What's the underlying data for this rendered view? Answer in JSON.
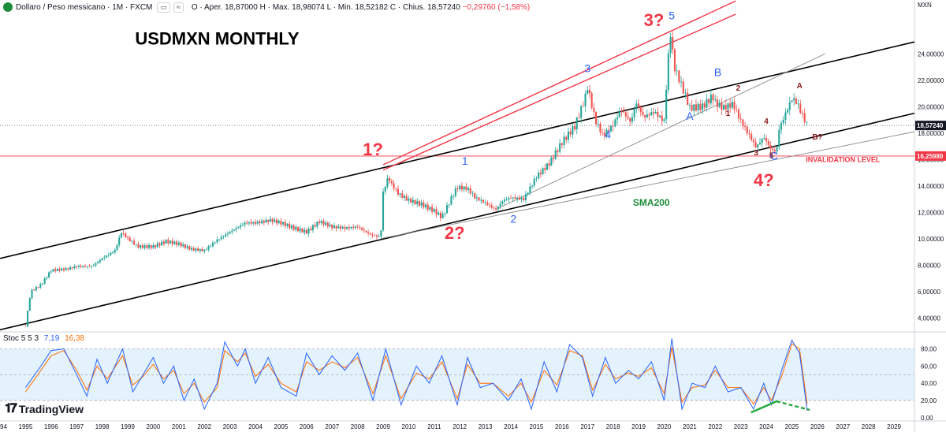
{
  "header": {
    "symbol": "Dollaro / Peso messicano · 1M · FXCM",
    "ohlc": "O · Aper. 18,87000  H · Max. 18,98074  L · Min. 18,52182  C · Chius. 18,57240",
    "change": "−0,29760 (−1,58%)",
    "compare_icon": "compare-icon",
    "indicator_icon": "approx-icon"
  },
  "unit_label": "MXN",
  "stoch_legend": {
    "name": "Stoc 5 5 3",
    "k": "7,19",
    "d": "16,38"
  },
  "brand": {
    "name": "TradingView",
    "icon": "tradingview-logo-icon"
  },
  "colors": {
    "up": "#26a69a",
    "down": "#ef5350",
    "red_annot": "#f23645",
    "blue_annot": "#2962ff",
    "dark_red_annot": "#8b1a1a",
    "green_annot": "#1e8c3a",
    "stoch_k": "#2962ff",
    "stoch_d": "#ff6d00",
    "stoch_band": "#e3f2fd",
    "channel": "#000000"
  },
  "chart_data": [
    {
      "type": "candlestick",
      "title": "USDMXN MONTHLY",
      "y_axis": {
        "min": 3,
        "max": 27,
        "ticks": [
          "4,00000",
          "6,00000",
          "8,00000",
          "10,00000",
          "12,00000",
          "14,00000",
          "16,00000",
          "18,00000",
          "20,00000",
          "22,00000",
          "24,00000"
        ]
      },
      "x_axis": {
        "start": 1994.0,
        "end": 2029.8,
        "ticks": [
          "1994",
          "1995",
          "1996",
          "1997",
          "1998",
          "1999",
          "2000",
          "2001",
          "2002",
          "2003",
          "2004",
          "2005",
          "2006",
          "2007",
          "2008",
          "2009",
          "2010",
          "2011",
          "2012",
          "2013",
          "2014",
          "2015",
          "2016",
          "2017",
          "2018",
          "2019",
          "2020",
          "2021",
          "2022",
          "2023",
          "2024",
          "2025",
          "2026",
          "2027",
          "2028",
          "2029"
        ]
      },
      "price_path": [
        [
          1995.0,
          3.4
        ],
        [
          1995.2,
          6.0
        ],
        [
          1995.6,
          6.5
        ],
        [
          1996.0,
          7.6
        ],
        [
          1996.6,
          7.7
        ],
        [
          1997.0,
          7.9
        ],
        [
          1997.6,
          7.9
        ],
        [
          1998.0,
          8.5
        ],
        [
          1998.5,
          9.1
        ],
        [
          1998.75,
          10.5
        ],
        [
          1999.0,
          10.0
        ],
        [
          1999.4,
          9.4
        ],
        [
          2000.0,
          9.4
        ],
        [
          2000.5,
          9.8
        ],
        [
          2001.0,
          9.6
        ],
        [
          2001.5,
          9.2
        ],
        [
          2002.0,
          9.1
        ],
        [
          2002.5,
          9.9
        ],
        [
          2003.0,
          10.5
        ],
        [
          2003.6,
          11.2
        ],
        [
          2004.0,
          11.2
        ],
        [
          2004.6,
          11.4
        ],
        [
          2005.0,
          11.2
        ],
        [
          2005.5,
          10.8
        ],
        [
          2006.0,
          10.5
        ],
        [
          2006.5,
          11.3
        ],
        [
          2007.0,
          10.9
        ],
        [
          2007.5,
          10.8
        ],
        [
          2008.0,
          10.9
        ],
        [
          2008.5,
          10.3
        ],
        [
          2008.9,
          10.1
        ],
        [
          2009.0,
          13.5
        ],
        [
          2009.2,
          14.7
        ],
        [
          2009.3,
          14.2
        ],
        [
          2009.6,
          13.4
        ],
        [
          2010.0,
          12.9
        ],
        [
          2010.5,
          12.6
        ],
        [
          2011.0,
          12.1
        ],
        [
          2011.3,
          11.6
        ],
        [
          2011.7,
          13.2
        ],
        [
          2011.9,
          13.9
        ],
        [
          2012.3,
          13.8
        ],
        [
          2012.6,
          13.1
        ],
        [
          2013.0,
          12.7
        ],
        [
          2013.4,
          12.2
        ],
        [
          2013.7,
          12.9
        ],
        [
          2014.0,
          13.1
        ],
        [
          2014.5,
          13.0
        ],
        [
          2015.0,
          14.7
        ],
        [
          2015.5,
          15.7
        ],
        [
          2016.0,
          17.3
        ],
        [
          2016.5,
          18.5
        ],
        [
          2016.9,
          20.6
        ],
        [
          2017.0,
          21.5
        ],
        [
          2017.3,
          19.0
        ],
        [
          2017.6,
          17.8
        ],
        [
          2018.0,
          18.6
        ],
        [
          2018.3,
          19.8
        ],
        [
          2018.7,
          18.8
        ],
        [
          2018.9,
          20.3
        ],
        [
          2019.2,
          19.2
        ],
        [
          2019.6,
          19.6
        ],
        [
          2020.0,
          18.9
        ],
        [
          2020.15,
          23.5
        ],
        [
          2020.25,
          25.5
        ],
        [
          2020.4,
          23.0
        ],
        [
          2020.8,
          21.0
        ],
        [
          2021.0,
          19.9
        ],
        [
          2021.5,
          20.0
        ],
        [
          2021.9,
          20.8
        ],
        [
          2022.0,
          20.3
        ],
        [
          2022.3,
          19.9
        ],
        [
          2022.7,
          20.2
        ],
        [
          2023.0,
          18.9
        ],
        [
          2023.4,
          17.6
        ],
        [
          2023.6,
          16.9
        ],
        [
          2023.9,
          17.7
        ],
        [
          2024.2,
          16.7
        ],
        [
          2024.4,
          16.6
        ],
        [
          2024.5,
          18.3
        ],
        [
          2024.8,
          19.7
        ],
        [
          2025.0,
          20.6
        ],
        [
          2025.2,
          20.3
        ],
        [
          2025.4,
          19.4
        ],
        [
          2025.6,
          18.6
        ]
      ],
      "horizontal_levels": [
        {
          "value": 18.5724,
          "label": "18,57240",
          "style": "dotted"
        },
        {
          "value": 16.2598,
          "label": "16,25980",
          "style": "solid-red"
        }
      ],
      "trendlines": [
        {
          "name": "upper-channel",
          "from": [
            1994.0,
            8.5
          ],
          "to": [
            2029.8,
            24.9
          ]
        },
        {
          "name": "lower-channel",
          "from": [
            1994.0,
            3.1
          ],
          "to": [
            2029.8,
            19.5
          ]
        },
        {
          "name": "sma200",
          "from": [
            2008.9,
            10.0
          ],
          "to": [
            2029.8,
            18.1
          ]
        },
        {
          "name": "thin-diagonal",
          "from": [
            2013.5,
            12.3
          ],
          "to": [
            2026.3,
            24.0
          ]
        },
        {
          "name": "red-upper-1",
          "from": [
            2009.0,
            15.6
          ],
          "to": [
            2022.8,
            28.0
          ]
        },
        {
          "name": "red-upper-2",
          "from": [
            2009.0,
            15.2
          ],
          "to": [
            2022.8,
            27.0
          ]
        }
      ],
      "annotations": [
        {
          "text": "USDMXN MONTHLY",
          "x": 2002.5,
          "y": 24.7,
          "style": "title"
        },
        {
          "text": "1?",
          "x": 2008.6,
          "y": 16.3,
          "style": "red"
        },
        {
          "text": "2?",
          "x": 2011.8,
          "y": 10.0,
          "style": "red"
        },
        {
          "text": "3?",
          "x": 2019.6,
          "y": 26.1,
          "style": "red"
        },
        {
          "text": "4?",
          "x": 2023.9,
          "y": 14.0,
          "style": "red"
        },
        {
          "text": "1",
          "x": 2012.2,
          "y": 15.6,
          "style": "blue"
        },
        {
          "text": "2",
          "x": 2014.1,
          "y": 11.2,
          "style": "blue"
        },
        {
          "text": "3",
          "x": 2017.0,
          "y": 22.6,
          "style": "blue"
        },
        {
          "text": "4",
          "x": 2017.8,
          "y": 17.6,
          "style": "blue"
        },
        {
          "text": "5",
          "x": 2020.3,
          "y": 26.6,
          "style": "blue"
        },
        {
          "text": "A",
          "x": 2021.0,
          "y": 19.0,
          "style": "blue"
        },
        {
          "text": "B",
          "x": 2022.1,
          "y": 22.3,
          "style": "blue"
        },
        {
          "text": "C",
          "x": 2024.3,
          "y": 16.0,
          "style": "blue"
        },
        {
          "text": "1",
          "x": 2022.5,
          "y": 19.3,
          "style": "darkred"
        },
        {
          "text": "2",
          "x": 2022.9,
          "y": 21.2,
          "style": "darkred"
        },
        {
          "text": "3",
          "x": 2023.6,
          "y": 16.3,
          "style": "darkred"
        },
        {
          "text": "4",
          "x": 2024.0,
          "y": 18.7,
          "style": "darkred"
        },
        {
          "text": "5",
          "x": 2024.2,
          "y": 16.1,
          "style": "darkred"
        },
        {
          "text": "A",
          "x": 2025.3,
          "y": 21.4,
          "style": "darkred"
        },
        {
          "text": "B?",
          "x": 2026.0,
          "y": 17.5,
          "style": "darkred"
        },
        {
          "text": "INVALIDATION LEVEL",
          "x": 2027.0,
          "y": 15.8,
          "style": "red-small"
        },
        {
          "text": "SMA200",
          "x": 2019.5,
          "y": 12.5,
          "style": "green"
        }
      ]
    },
    {
      "type": "line",
      "name": "Stochastic",
      "y_axis": {
        "min": -2,
        "max": 97,
        "ticks": [
          "0,00",
          "20,00",
          "40,00",
          "60,00",
          "80,00"
        ]
      },
      "band": [
        20,
        80
      ],
      "k_path": [
        [
          1995.0,
          35
        ],
        [
          1995.6,
          60
        ],
        [
          1996.0,
          78
        ],
        [
          1996.5,
          80
        ],
        [
          1997.0,
          50
        ],
        [
          1997.4,
          25
        ],
        [
          1997.8,
          68
        ],
        [
          1998.2,
          40
        ],
        [
          1998.8,
          80
        ],
        [
          1999.2,
          30
        ],
        [
          1999.6,
          50
        ],
        [
          2000.0,
          70
        ],
        [
          2000.4,
          40
        ],
        [
          2000.8,
          60
        ],
        [
          2001.2,
          20
        ],
        [
          2001.6,
          45
        ],
        [
          2002.0,
          10
        ],
        [
          2002.5,
          40
        ],
        [
          2002.8,
          88
        ],
        [
          2003.3,
          60
        ],
        [
          2003.6,
          80
        ],
        [
          2004.0,
          40
        ],
        [
          2004.5,
          70
        ],
        [
          2005.0,
          35
        ],
        [
          2005.6,
          25
        ],
        [
          2006.0,
          75
        ],
        [
          2006.5,
          50
        ],
        [
          2007.0,
          72
        ],
        [
          2007.5,
          55
        ],
        [
          2008.0,
          75
        ],
        [
          2008.6,
          20
        ],
        [
          2009.1,
          80
        ],
        [
          2009.7,
          15
        ],
        [
          2010.3,
          60
        ],
        [
          2010.8,
          40
        ],
        [
          2011.3,
          72
        ],
        [
          2011.9,
          15
        ],
        [
          2012.3,
          70
        ],
        [
          2012.8,
          35
        ],
        [
          2013.3,
          40
        ],
        [
          2013.9,
          20
        ],
        [
          2014.4,
          45
        ],
        [
          2014.8,
          10
        ],
        [
          2015.3,
          65
        ],
        [
          2015.8,
          30
        ],
        [
          2016.3,
          85
        ],
        [
          2016.8,
          70
        ],
        [
          2017.2,
          25
        ],
        [
          2017.7,
          70
        ],
        [
          2018.1,
          40
        ],
        [
          2018.6,
          55
        ],
        [
          2019.0,
          45
        ],
        [
          2019.5,
          65
        ],
        [
          2020.0,
          20
        ],
        [
          2020.3,
          92
        ],
        [
          2020.7,
          10
        ],
        [
          2021.1,
          40
        ],
        [
          2021.6,
          35
        ],
        [
          2022.0,
          60
        ],
        [
          2022.5,
          30
        ],
        [
          2023.0,
          35
        ],
        [
          2023.5,
          10
        ],
        [
          2023.9,
          40
        ],
        [
          2024.2,
          15
        ],
        [
          2024.6,
          55
        ],
        [
          2025.0,
          90
        ],
        [
          2025.3,
          75
        ],
        [
          2025.6,
          8
        ]
      ],
      "d_path": [
        [
          1995.0,
          30
        ],
        [
          1995.6,
          55
        ],
        [
          1996.0,
          72
        ],
        [
          1996.5,
          78
        ],
        [
          1997.0,
          55
        ],
        [
          1997.4,
          32
        ],
        [
          1997.8,
          60
        ],
        [
          1998.2,
          45
        ],
        [
          1998.8,
          72
        ],
        [
          1999.2,
          38
        ],
        [
          1999.6,
          48
        ],
        [
          2000.0,
          62
        ],
        [
          2000.4,
          45
        ],
        [
          2000.8,
          55
        ],
        [
          2001.2,
          28
        ],
        [
          2001.6,
          40
        ],
        [
          2002.0,
          18
        ],
        [
          2002.5,
          35
        ],
        [
          2002.8,
          78
        ],
        [
          2003.3,
          65
        ],
        [
          2003.6,
          75
        ],
        [
          2004.0,
          48
        ],
        [
          2004.5,
          62
        ],
        [
          2005.0,
          40
        ],
        [
          2005.6,
          30
        ],
        [
          2006.0,
          65
        ],
        [
          2006.5,
          55
        ],
        [
          2007.0,
          65
        ],
        [
          2007.5,
          58
        ],
        [
          2008.0,
          70
        ],
        [
          2008.6,
          28
        ],
        [
          2009.1,
          72
        ],
        [
          2009.7,
          22
        ],
        [
          2010.3,
          52
        ],
        [
          2010.8,
          45
        ],
        [
          2011.3,
          65
        ],
        [
          2011.9,
          22
        ],
        [
          2012.3,
          62
        ],
        [
          2012.8,
          40
        ],
        [
          2013.3,
          40
        ],
        [
          2013.9,
          25
        ],
        [
          2014.4,
          40
        ],
        [
          2014.8,
          18
        ],
        [
          2015.3,
          55
        ],
        [
          2015.8,
          38
        ],
        [
          2016.3,
          78
        ],
        [
          2016.8,
          72
        ],
        [
          2017.2,
          32
        ],
        [
          2017.7,
          62
        ],
        [
          2018.1,
          45
        ],
        [
          2018.6,
          52
        ],
        [
          2019.0,
          48
        ],
        [
          2019.5,
          58
        ],
        [
          2020.0,
          28
        ],
        [
          2020.3,
          82
        ],
        [
          2020.7,
          18
        ],
        [
          2021.1,
          35
        ],
        [
          2021.6,
          38
        ],
        [
          2022.0,
          55
        ],
        [
          2022.5,
          35
        ],
        [
          2023.0,
          35
        ],
        [
          2023.5,
          16
        ],
        [
          2023.9,
          35
        ],
        [
          2024.2,
          20
        ],
        [
          2024.6,
          48
        ],
        [
          2025.0,
          86
        ],
        [
          2025.3,
          80
        ],
        [
          2025.6,
          16
        ]
      ],
      "divergence_lines": [
        {
          "from": [
            2023.4,
            6
          ],
          "to": [
            2024.4,
            19
          ],
          "style": "solid-green"
        },
        {
          "from": [
            2024.4,
            19
          ],
          "to": [
            2025.7,
            9
          ],
          "style": "dashed-green"
        }
      ]
    }
  ]
}
